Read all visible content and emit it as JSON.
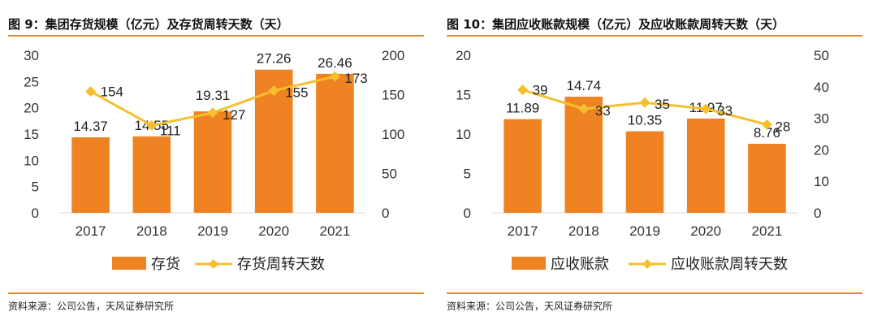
{
  "panels": [
    {
      "title": "图 9：集团存货规模（亿元）及存货周转天数（天）",
      "source": "资料来源：公司公告，天风证券研究所"
    },
    {
      "title": "图 10：集团应收账款规模（亿元）及应收账款周转天数（天）",
      "source": "资料来源：公司公告，天风证券研究所"
    }
  ],
  "chart_data": [
    {
      "type": "bar+line",
      "categories": [
        "2017",
        "2018",
        "2019",
        "2020",
        "2021"
      ],
      "series": [
        {
          "name": "存货",
          "type": "bar",
          "axis": "left",
          "color": "#ef8324",
          "values": [
            14.37,
            14.55,
            19.31,
            27.26,
            26.46
          ],
          "labels": [
            "14.37",
            "14.55",
            "19.31",
            "27.26",
            "26.46"
          ]
        },
        {
          "name": "存货周转天数",
          "type": "line",
          "axis": "right",
          "color": "#f5c02c",
          "values": [
            154,
            111,
            127,
            155,
            173
          ],
          "labels": [
            "154",
            "111",
            "127",
            "155",
            "173"
          ]
        }
      ],
      "y_left": {
        "ylim": [
          0,
          30
        ],
        "ticks": [
          "0",
          "5",
          "10",
          "15",
          "20",
          "25",
          "30"
        ]
      },
      "y_right": {
        "ylim": [
          0,
          200
        ],
        "ticks": [
          "0",
          "50",
          "100",
          "150",
          "200"
        ]
      },
      "legend": "bottom",
      "grid": false
    },
    {
      "type": "bar+line",
      "categories": [
        "2017",
        "2018",
        "2019",
        "2020",
        "2021"
      ],
      "series": [
        {
          "name": "应收账款",
          "type": "bar",
          "axis": "left",
          "color": "#ef8324",
          "values": [
            11.89,
            14.74,
            10.35,
            11.97,
            8.76
          ],
          "labels": [
            "11.89",
            "14.74",
            "10.35",
            "11.97",
            "8.76"
          ]
        },
        {
          "name": "应收账款周转天数",
          "type": "line",
          "axis": "right",
          "color": "#f5c02c",
          "values": [
            39,
            33,
            35,
            33,
            28
          ],
          "labels": [
            "39",
            "33",
            "35",
            "33",
            "28"
          ]
        }
      ],
      "y_left": {
        "ylim": [
          0,
          20
        ],
        "ticks": [
          "0",
          "5",
          "10",
          "15",
          "20"
        ]
      },
      "y_right": {
        "ylim": [
          0,
          50
        ],
        "ticks": [
          "0",
          "10",
          "20",
          "30",
          "40",
          "50"
        ]
      },
      "legend": "bottom",
      "grid": false
    }
  ]
}
